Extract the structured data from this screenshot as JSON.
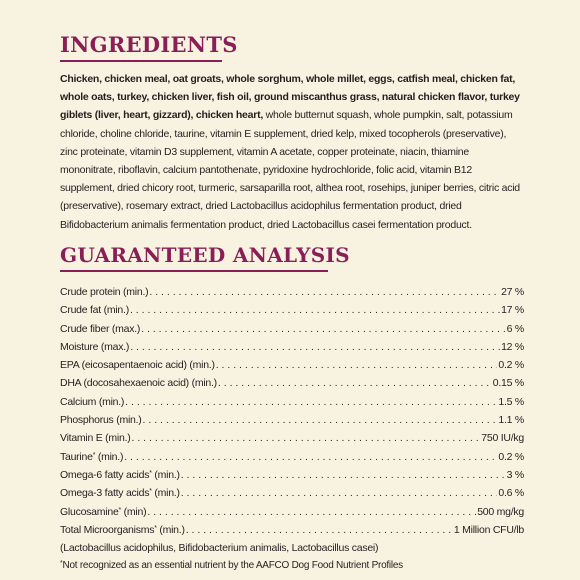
{
  "ingredients": {
    "heading": "INGREDIENTS",
    "bold_text": "Chicken, chicken meal, oat groats, whole sorghum, whole millet, eggs, catfish meal, chicken fat, whole oats, turkey, chicken liver, fish oil, ground miscanthus grass, natural chicken flavor, turkey giblets (liver, heart, gizzard), chicken heart,",
    "regular_text": " whole butternut squash, whole pumpkin, salt, potassium chloride, choline chloride, taurine, vitamin E supplement, dried kelp, mixed tocopherols (preservative), zinc proteinate, vitamin D3 supplement, vitamin A acetate, copper proteinate, niacin, thiamine mononitrate, riboflavin, calcium pantothenate, pyridoxine hydrochloride, folic acid, vitamin B12 supplement, dried chicory root, turmeric, sarsaparilla root, althea root, rosehips, juniper berries, citric acid (preservative), rosemary extract, dried Lactobacillus acidophilus fermentation product, dried Bifidobacterium animalis fermentation product, dried Lactobacillus casei fermentation product."
  },
  "analysis": {
    "heading": "GUARANTEED ANALYSIS",
    "rows": [
      {
        "name": "Crude protein (min.)",
        "mark": "",
        "suffix": "",
        "value": "27 %"
      },
      {
        "name": "Crude fat (min.)",
        "mark": "",
        "suffix": "",
        "value": "17 %"
      },
      {
        "name": "Crude fiber (max.)",
        "mark": "",
        "suffix": "",
        "value": "6 %"
      },
      {
        "name": "Moisture (max.)",
        "mark": "",
        "suffix": "",
        "value": "12 %"
      },
      {
        "name": "EPA (eicosapentaenoic acid) (min.)",
        "mark": "",
        "suffix": "",
        "value": "0.2 %"
      },
      {
        "name": "DHA (docosahexaenoic acid) (min.)",
        "mark": "",
        "suffix": "",
        "value": "0.15 %"
      },
      {
        "name": "Calcium (min.)",
        "mark": "",
        "suffix": "",
        "value": "1.5 %"
      },
      {
        "name": "Phosphorus (min.)",
        "mark": "",
        "suffix": "",
        "value": "1.1 %"
      },
      {
        "name": "Vitamin E (min.)",
        "mark": "",
        "suffix": "",
        "value": "750 IU/kg"
      },
      {
        "name": "Taurine",
        "mark": "*",
        "suffix": " (min.)",
        "value": "0.2 %"
      },
      {
        "name": "Omega-6 fatty acids",
        "mark": "*",
        "suffix": " (min.)",
        "value": "3 %"
      },
      {
        "name": "Omega-3 fatty acids",
        "mark": "*",
        "suffix": " (min.)",
        "value": "0.6 %"
      },
      {
        "name": "Glucosamine",
        "mark": "*",
        "suffix": " (min)",
        "value": "500 mg/kg"
      },
      {
        "name": "Total Microorganisms",
        "mark": "*",
        "suffix": " (min.)",
        "value": "1 Million CFU/lb"
      }
    ],
    "note": "(Lactobacillus acidophilus, Bifidobacterium animalis, Lactobacillus casei)",
    "footnote_mark": "*",
    "footnote": "Not recognized as an essential nutrient by the AAFCO Dog Food Nutrient Profiles"
  },
  "colors": {
    "heading": "#8a1f58",
    "background": "#f8f3e1",
    "text": "#231f20"
  }
}
